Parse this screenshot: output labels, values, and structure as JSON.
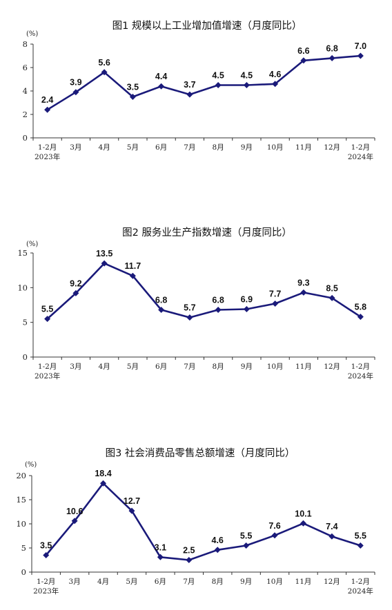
{
  "colors": {
    "series": "#1a1a7a",
    "axis": "#333333",
    "text": "#111111"
  },
  "chart_data": [
    {
      "type": "line",
      "title": "图1 规模以上工业增加值增速（月度同比）",
      "unit": "(%)",
      "categories": [
        "1-2月",
        "3月",
        "4月",
        "5月",
        "6月",
        "7月",
        "8月",
        "9月",
        "10月",
        "11月",
        "12月",
        "1-2月"
      ],
      "year_labels": [
        "2023年",
        "",
        "",
        "",
        "",
        "",
        "",
        "",
        "",
        "",
        "",
        "2024年"
      ],
      "values": [
        2.4,
        3.9,
        5.6,
        3.5,
        4.4,
        3.7,
        4.5,
        4.5,
        4.6,
        6.6,
        6.8,
        7.0
      ],
      "value_labels": [
        "2.4",
        "3.9",
        "5.6",
        "3.5",
        "4.4",
        "3.7",
        "4.5",
        "4.5",
        "4.6",
        "6.6",
        "6.8",
        "7.0"
      ],
      "ylim": [
        0,
        8
      ],
      "yticks": [
        "0",
        "2",
        "4",
        "6",
        "8"
      ],
      "grid": false,
      "marker": "diamond"
    },
    {
      "type": "line",
      "title": "图2 服务业生产指数增速（月度同比）",
      "unit": "(%)",
      "categories": [
        "1-2月",
        "3月",
        "4月",
        "5月",
        "6月",
        "7月",
        "8月",
        "9月",
        "10月",
        "11月",
        "12月",
        "1-2月"
      ],
      "year_labels": [
        "2023年",
        "",
        "",
        "",
        "",
        "",
        "",
        "",
        "",
        "",
        "",
        "2024年"
      ],
      "values": [
        5.5,
        9.2,
        13.5,
        11.7,
        6.8,
        5.7,
        6.8,
        6.9,
        7.7,
        9.3,
        8.5,
        5.8
      ],
      "value_labels": [
        "5.5",
        "9.2",
        "13.5",
        "11.7",
        "6.8",
        "5.7",
        "6.8",
        "6.9",
        "7.7",
        "9.3",
        "8.5",
        "5.8"
      ],
      "ylim": [
        0,
        15
      ],
      "yticks": [
        "0",
        "5",
        "10",
        "15"
      ],
      "grid": false,
      "marker": "diamond"
    },
    {
      "type": "line",
      "title": "图3 社会消费品零售总额增速（月度同比）",
      "unit": "(%)",
      "categories": [
        "1-2月",
        "3月",
        "4月",
        "5月",
        "6月",
        "7月",
        "8月",
        "9月",
        "10月",
        "11月",
        "12月",
        "1-2月"
      ],
      "year_labels": [
        "2023年",
        "",
        "",
        "",
        "",
        "",
        "",
        "",
        "",
        "",
        "",
        "2024年"
      ],
      "values": [
        3.5,
        10.6,
        18.4,
        12.7,
        3.1,
        2.5,
        4.6,
        5.5,
        7.6,
        10.1,
        7.4,
        5.5
      ],
      "value_labels": [
        "3.5",
        "10.6",
        "18.4",
        "12.7",
        "3.1",
        "2.5",
        "4.6",
        "5.5",
        "7.6",
        "10.1",
        "7.4",
        "5.5"
      ],
      "ylim": [
        0,
        20
      ],
      "yticks": [
        "0",
        "5",
        "10",
        "15",
        "20"
      ],
      "grid": false,
      "marker": "diamond"
    }
  ]
}
